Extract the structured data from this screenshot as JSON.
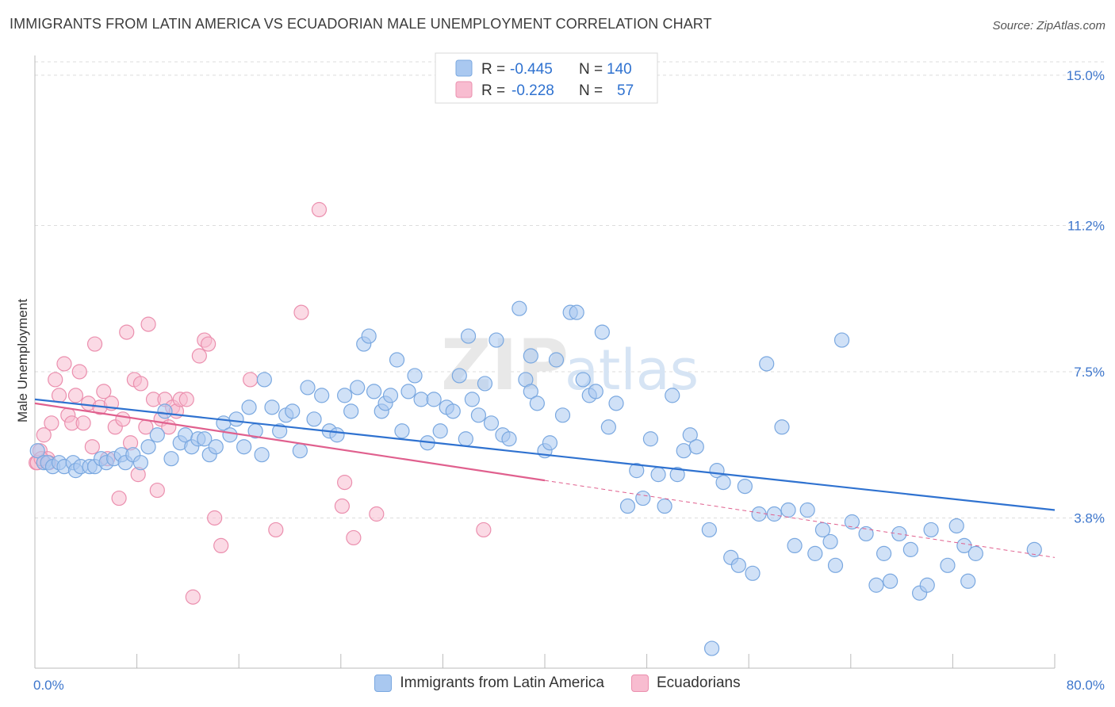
{
  "header": {
    "title": "IMMIGRANTS FROM LATIN AMERICA VS ECUADORIAN MALE UNEMPLOYMENT CORRELATION CHART",
    "source": "Source: ZipAtlas.com"
  },
  "watermark": {
    "zip": "ZIP",
    "atlas": "atlas"
  },
  "legend": {
    "rows": [
      {
        "r_label": "R =",
        "r_value": "-0.445",
        "n_label": "N =",
        "n_value": "140"
      },
      {
        "r_label": "R =",
        "r_value": "-0.228",
        "n_label": "N =",
        "n_value": "57"
      }
    ]
  },
  "colors": {
    "blue_fill": "#a9c8f0",
    "blue_stroke": "#7aa8e0",
    "blue_line": "#2f72d0",
    "pink_fill": "#f8bcd0",
    "pink_stroke": "#eb8fae",
    "pink_line": "#e0608e",
    "tick_label": "#3d76cc",
    "grid": "#dddddd"
  },
  "chart_data": {
    "type": "scatter",
    "title": "IMMIGRANTS FROM LATIN AMERICA VS ECUADORIAN MALE UNEMPLOYMENT CORRELATION CHART",
    "xlabel": "",
    "ylabel": "Male Unemployment",
    "xlim": [
      0,
      80
    ],
    "ylim": [
      0,
      15.5
    ],
    "x_tick_labels": [
      "0.0%",
      "80.0%"
    ],
    "y_ticks": [
      3.8,
      7.5,
      11.2,
      15.0
    ],
    "y_tick_labels": [
      "3.8%",
      "7.5%",
      "11.2%",
      "15.0%"
    ],
    "grid": true,
    "legend_position": "top-center",
    "series": [
      {
        "name": "Immigrants from Latin America",
        "color": "#a9c8f0",
        "r": -0.445,
        "n": 140,
        "trend": {
          "x": [
            0,
            80
          ],
          "y": [
            6.8,
            4.0
          ],
          "dashed_from": null
        },
        "points": [
          [
            0.2,
            5.5
          ],
          [
            0.7,
            5.2
          ],
          [
            1.0,
            5.2
          ],
          [
            1.4,
            5.1
          ],
          [
            1.9,
            5.2
          ],
          [
            2.3,
            5.1
          ],
          [
            3.0,
            5.2
          ],
          [
            3.2,
            5.0
          ],
          [
            3.6,
            5.1
          ],
          [
            4.3,
            5.1
          ],
          [
            4.7,
            5.1
          ],
          [
            5.2,
            5.3
          ],
          [
            5.6,
            5.2
          ],
          [
            6.2,
            5.3
          ],
          [
            6.8,
            5.4
          ],
          [
            7.1,
            5.2
          ],
          [
            7.7,
            5.4
          ],
          [
            8.3,
            5.2
          ],
          [
            8.9,
            5.6
          ],
          [
            9.6,
            5.9
          ],
          [
            10.2,
            6.5
          ],
          [
            10.7,
            5.3
          ],
          [
            11.4,
            5.7
          ],
          [
            11.8,
            5.9
          ],
          [
            12.3,
            5.6
          ],
          [
            12.8,
            5.8
          ],
          [
            13.3,
            5.8
          ],
          [
            13.7,
            5.4
          ],
          [
            14.2,
            5.6
          ],
          [
            14.8,
            6.2
          ],
          [
            15.3,
            5.9
          ],
          [
            15.8,
            6.3
          ],
          [
            16.4,
            5.6
          ],
          [
            16.8,
            6.6
          ],
          [
            17.3,
            6.0
          ],
          [
            17.8,
            5.4
          ],
          [
            18.0,
            7.3
          ],
          [
            18.6,
            6.6
          ],
          [
            19.2,
            6.0
          ],
          [
            19.7,
            6.4
          ],
          [
            20.2,
            6.5
          ],
          [
            20.8,
            5.5
          ],
          [
            21.4,
            7.1
          ],
          [
            21.9,
            6.3
          ],
          [
            22.5,
            6.9
          ],
          [
            23.1,
            6.0
          ],
          [
            23.7,
            5.9
          ],
          [
            24.3,
            6.9
          ],
          [
            24.8,
            6.5
          ],
          [
            25.3,
            7.1
          ],
          [
            25.8,
            8.2
          ],
          [
            26.2,
            8.4
          ],
          [
            26.6,
            7.0
          ],
          [
            27.2,
            6.5
          ],
          [
            27.5,
            6.7
          ],
          [
            27.9,
            6.9
          ],
          [
            28.4,
            7.8
          ],
          [
            28.8,
            6.0
          ],
          [
            29.3,
            7.0
          ],
          [
            29.8,
            7.4
          ],
          [
            30.3,
            6.8
          ],
          [
            30.8,
            5.7
          ],
          [
            31.3,
            6.8
          ],
          [
            31.8,
            6.0
          ],
          [
            32.3,
            6.6
          ],
          [
            32.8,
            6.5
          ],
          [
            33.3,
            7.4
          ],
          [
            34.0,
            8.4
          ],
          [
            34.3,
            6.8
          ],
          [
            34.8,
            6.4
          ],
          [
            35.3,
            7.2
          ],
          [
            35.8,
            6.2
          ],
          [
            36.2,
            8.3
          ],
          [
            36.7,
            5.9
          ],
          [
            37.2,
            5.8
          ],
          [
            38.0,
            9.1
          ],
          [
            38.5,
            7.3
          ],
          [
            38.9,
            7.0
          ],
          [
            39.4,
            6.7
          ],
          [
            40.0,
            5.5
          ],
          [
            40.4,
            5.7
          ],
          [
            40.9,
            7.8
          ],
          [
            41.4,
            6.4
          ],
          [
            42.0,
            9.0
          ],
          [
            42.5,
            9.0
          ],
          [
            43.0,
            7.3
          ],
          [
            43.5,
            6.9
          ],
          [
            44.0,
            7.0
          ],
          [
            44.5,
            8.5
          ],
          [
            45.0,
            6.1
          ],
          [
            46.5,
            4.1
          ],
          [
            47.2,
            5.0
          ],
          [
            47.7,
            4.3
          ],
          [
            48.3,
            5.8
          ],
          [
            48.9,
            4.9
          ],
          [
            49.4,
            4.1
          ],
          [
            50.0,
            6.9
          ],
          [
            50.4,
            4.9
          ],
          [
            50.9,
            5.5
          ],
          [
            51.4,
            5.9
          ],
          [
            51.9,
            5.6
          ],
          [
            52.9,
            3.5
          ],
          [
            53.5,
            5.0
          ],
          [
            54.0,
            4.7
          ],
          [
            54.6,
            2.8
          ],
          [
            55.2,
            2.6
          ],
          [
            55.7,
            4.6
          ],
          [
            56.3,
            2.4
          ],
          [
            56.8,
            3.9
          ],
          [
            57.4,
            7.7
          ],
          [
            58.0,
            3.9
          ],
          [
            58.6,
            6.1
          ],
          [
            59.1,
            4.0
          ],
          [
            59.6,
            3.1
          ],
          [
            60.6,
            4.0
          ],
          [
            61.2,
            2.9
          ],
          [
            61.8,
            3.5
          ],
          [
            62.4,
            3.2
          ],
          [
            62.8,
            2.6
          ],
          [
            63.3,
            8.3
          ],
          [
            64.1,
            3.7
          ],
          [
            65.2,
            3.4
          ],
          [
            66.0,
            2.1
          ],
          [
            66.6,
            2.9
          ],
          [
            67.1,
            2.2
          ],
          [
            67.8,
            3.4
          ],
          [
            68.7,
            3.0
          ],
          [
            69.4,
            1.9
          ],
          [
            70.0,
            2.1
          ],
          [
            70.3,
            3.5
          ],
          [
            71.6,
            2.6
          ],
          [
            72.3,
            3.6
          ],
          [
            72.9,
            3.1
          ],
          [
            73.2,
            2.2
          ],
          [
            73.8,
            2.9
          ],
          [
            78.4,
            3.0
          ],
          [
            53.1,
            0.5
          ],
          [
            38.9,
            7.9
          ],
          [
            45.6,
            6.7
          ],
          [
            33.8,
            5.8
          ]
        ]
      },
      {
        "name": "Ecuadorians",
        "color": "#f8bcd0",
        "r": -0.228,
        "n": 57,
        "trend": {
          "x": [
            0,
            80
          ],
          "y": [
            6.7,
            2.8
          ],
          "dashed_from": 40
        },
        "points": [
          [
            0.1,
            5.2
          ],
          [
            0.4,
            5.5
          ],
          [
            0.7,
            5.9
          ],
          [
            1.0,
            5.3
          ],
          [
            1.3,
            6.2
          ],
          [
            1.6,
            7.3
          ],
          [
            1.9,
            6.9
          ],
          [
            2.3,
            7.7
          ],
          [
            2.6,
            6.4
          ],
          [
            2.9,
            6.2
          ],
          [
            3.2,
            6.9
          ],
          [
            3.5,
            7.5
          ],
          [
            3.8,
            6.2
          ],
          [
            4.2,
            6.7
          ],
          [
            4.5,
            5.6
          ],
          [
            4.7,
            8.2
          ],
          [
            5.1,
            6.6
          ],
          [
            5.4,
            7.0
          ],
          [
            5.7,
            5.3
          ],
          [
            6.0,
            6.7
          ],
          [
            6.3,
            6.1
          ],
          [
            6.6,
            4.3
          ],
          [
            6.9,
            6.3
          ],
          [
            7.2,
            8.5
          ],
          [
            7.5,
            5.7
          ],
          [
            7.8,
            7.3
          ],
          [
            8.1,
            4.9
          ],
          [
            8.3,
            7.2
          ],
          [
            8.7,
            6.1
          ],
          [
            8.9,
            8.7
          ],
          [
            9.3,
            6.8
          ],
          [
            9.6,
            4.5
          ],
          [
            9.9,
            6.3
          ],
          [
            10.2,
            6.8
          ],
          [
            10.5,
            6.1
          ],
          [
            10.8,
            6.6
          ],
          [
            11.1,
            6.5
          ],
          [
            11.4,
            6.8
          ],
          [
            11.9,
            6.8
          ],
          [
            12.4,
            1.8
          ],
          [
            12.9,
            7.9
          ],
          [
            13.3,
            8.3
          ],
          [
            13.6,
            8.2
          ],
          [
            14.1,
            3.8
          ],
          [
            14.6,
            3.1
          ],
          [
            16.9,
            7.3
          ],
          [
            18.9,
            3.5
          ],
          [
            20.9,
            9.0
          ],
          [
            22.3,
            11.6
          ],
          [
            24.1,
            4.1
          ],
          [
            24.3,
            4.7
          ],
          [
            25.0,
            3.3
          ],
          [
            26.8,
            3.9
          ],
          [
            35.2,
            3.5
          ],
          [
            0.2,
            5.2
          ],
          [
            1.1,
            5.2
          ],
          [
            0.5,
            5.3
          ]
        ]
      }
    ]
  },
  "bottom_legend": [
    {
      "label": "Immigrants from Latin America"
    },
    {
      "label": "Ecuadorians"
    }
  ]
}
